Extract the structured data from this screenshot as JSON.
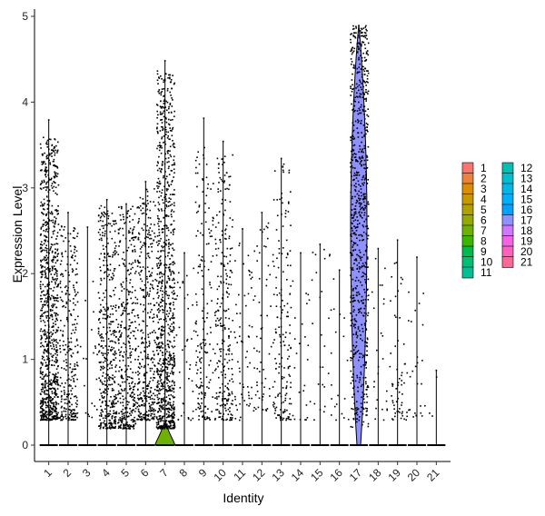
{
  "chart_data": {
    "type": "violin",
    "xlabel": "Identity",
    "ylabel": "Expression Level",
    "ylim": [
      0,
      5
    ],
    "yticks": [
      "0",
      "1",
      "2",
      "3",
      "4",
      "5"
    ],
    "grid": false,
    "legend_position": "right",
    "categories": [
      "1",
      "2",
      "3",
      "4",
      "5",
      "6",
      "7",
      "8",
      "9",
      "10",
      "11",
      "12",
      "13",
      "14",
      "15",
      "16",
      "17",
      "18",
      "19",
      "20",
      "21"
    ],
    "colors": [
      "#F8766D",
      "#EC823C",
      "#DD8D00",
      "#C89800",
      "#B0A100",
      "#94AA00",
      "#6FB100",
      "#3CB700",
      "#00BB4B",
      "#00BE72",
      "#00C094",
      "#00C0B4",
      "#00BDD0",
      "#00B7E8",
      "#00AEFA",
      "#00A2FF",
      "#8F91FF",
      "#D177FF",
      "#F264E3",
      "#FF62BD",
      "#FF6894"
    ],
    "series": [
      {
        "cluster": "1",
        "max": 3.8,
        "points": 900,
        "spread": [
          0.3,
          3.6
        ]
      },
      {
        "cluster": "2",
        "max": 2.72,
        "points": 280,
        "spread": [
          0.3,
          2.6
        ]
      },
      {
        "cluster": "3",
        "max": 2.55,
        "points": 20,
        "spread": [
          0.3,
          2.5
        ]
      },
      {
        "cluster": "4",
        "max": 2.87,
        "points": 420,
        "spread": [
          0.2,
          2.8
        ]
      },
      {
        "cluster": "5",
        "max": 2.82,
        "points": 380,
        "spread": [
          0.2,
          2.8
        ]
      },
      {
        "cluster": "6",
        "max": 3.08,
        "points": 380,
        "spread": [
          0.3,
          3.0
        ]
      },
      {
        "cluster": "7",
        "max": 4.49,
        "points": 950,
        "spread": [
          0.2,
          4.4
        ],
        "violin_peak": 0.25
      },
      {
        "cluster": "8",
        "max": 2.25,
        "points": 40,
        "spread": [
          0.3,
          2.2
        ]
      },
      {
        "cluster": "9",
        "max": 3.82,
        "points": 170,
        "spread": [
          0.3,
          3.5
        ]
      },
      {
        "cluster": "10",
        "max": 3.55,
        "points": 260,
        "spread": [
          0.3,
          3.4
        ]
      },
      {
        "cluster": "11",
        "max": 2.53,
        "points": 60,
        "spread": [
          0.3,
          2.4
        ]
      },
      {
        "cluster": "12",
        "max": 2.72,
        "points": 60,
        "spread": [
          0.4,
          2.6
        ]
      },
      {
        "cluster": "13",
        "max": 3.35,
        "points": 170,
        "spread": [
          0.3,
          3.3
        ]
      },
      {
        "cluster": "14",
        "max": 2.25,
        "points": 25,
        "spread": [
          0.3,
          2.1
        ]
      },
      {
        "cluster": "15",
        "max": 2.35,
        "points": 25,
        "spread": [
          0.3,
          2.3
        ]
      },
      {
        "cluster": "16",
        "max": 2.05,
        "points": 20,
        "spread": [
          0.3,
          2.0
        ]
      },
      {
        "cluster": "17",
        "max": 4.9,
        "points": 750,
        "spread": [
          0.2,
          4.9
        ],
        "violin_full": true
      },
      {
        "cluster": "18",
        "max": 2.3,
        "points": 25,
        "spread": [
          0.3,
          2.2
        ]
      },
      {
        "cluster": "19",
        "max": 2.4,
        "points": 60,
        "spread": [
          0.3,
          2.2
        ]
      },
      {
        "cluster": "20",
        "max": 2.2,
        "points": 25,
        "spread": [
          0.3,
          2.1
        ]
      },
      {
        "cluster": "21",
        "max": 0.88,
        "points": 3,
        "spread": [
          0.3,
          0.9
        ]
      }
    ]
  }
}
